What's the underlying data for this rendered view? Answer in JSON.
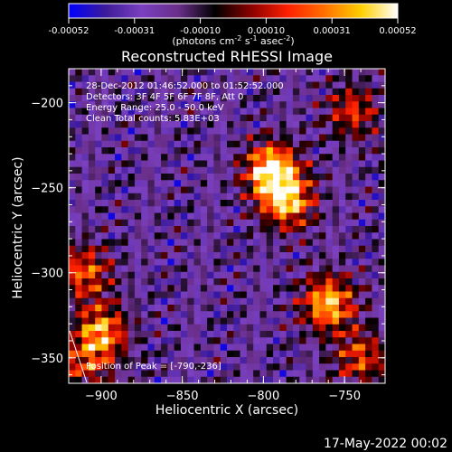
{
  "colorbar": {
    "colors": [
      "#0000ff",
      "#3c1a9a",
      "#7a40c0",
      "#6a2e8a",
      "#000000",
      "#8b0000",
      "#ff2000",
      "#ff7000",
      "#ffd000",
      "#ffffff"
    ],
    "ticks": [
      "-0.00052",
      "-0.00031",
      "-0.00010",
      "0.00010",
      "0.00031",
      "0.00052"
    ],
    "units_prefix": "(photons cm",
    "units_exp1": "-2",
    "units_mid1": " s",
    "units_exp2": "-1",
    "units_mid2": " asec",
    "units_exp3": "-2",
    "units_suffix": ")"
  },
  "chart_data": {
    "type": "heatmap",
    "title": "Reconstructed RHESSI Image",
    "xlabel": "Heliocentric X (arcsec)",
    "ylabel": "Heliocentric Y (arcsec)",
    "xlim": [
      -920,
      -725
    ],
    "ylim": [
      -365,
      -180
    ],
    "xticks": [
      -900,
      -850,
      -800,
      -750
    ],
    "yticks": [
      -350,
      -300,
      -250,
      -200
    ],
    "colorbar_range": [
      -0.00052,
      0.00052
    ],
    "info_lines": [
      "28-Dec-2012 01:46:52.000 to 01:52:52.000",
      "Detectors: 3F 4F 5F 6F 7F 8F, Att 0",
      "Energy Range: 25.0 - 50.0 keV",
      "Clean    Total counts: 5.83E+03"
    ],
    "peak_label": "Position of Peak = [-790,-236]",
    "peak_position": [
      -790,
      -236
    ],
    "bright_regions": [
      {
        "x": -795,
        "y": -240,
        "level": 1.0
      },
      {
        "x": -785,
        "y": -258,
        "level": 0.8
      },
      {
        "x": -760,
        "y": -318,
        "level": 0.85
      },
      {
        "x": -900,
        "y": -335,
        "level": 0.75
      },
      {
        "x": -910,
        "y": -300,
        "level": 0.6
      },
      {
        "x": -740,
        "y": -350,
        "level": 0.55
      },
      {
        "x": -745,
        "y": -205,
        "level": 0.5
      },
      {
        "x": -910,
        "y": -355,
        "level": 0.45
      }
    ]
  },
  "timestamp": "17-May-2022 00:02"
}
